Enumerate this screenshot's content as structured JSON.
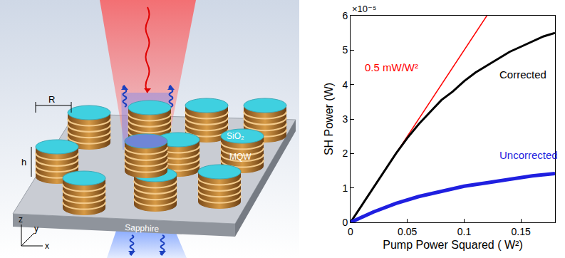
{
  "chart_data": {
    "type": "line",
    "xlabel": "Pump Power Squared ( W²)",
    "ylabel": "SH Power (W)",
    "y_scale_label": "×10⁻⁵",
    "xlim": [
      0,
      0.18
    ],
    "ylim": [
      0,
      6
    ],
    "xticks": [
      0,
      0.05,
      0.1,
      0.15
    ],
    "yticks": [
      0,
      1,
      2,
      3,
      4,
      5,
      6
    ],
    "grid": false,
    "series": [
      {
        "color": "#ff0000",
        "line_style": "solid",
        "x": [
          0,
          0.12
        ],
        "values": [
          0,
          6
        ]
      },
      {
        "color": "#000000",
        "line_style": "solid",
        "x": [
          0,
          0.01,
          0.02,
          0.03,
          0.04,
          0.05,
          0.06,
          0.07,
          0.08,
          0.09,
          0.1,
          0.11,
          0.12,
          0.13,
          0.14,
          0.15,
          0.16,
          0.17,
          0.18
        ],
        "values": [
          0,
          0.5,
          1.0,
          1.5,
          2.0,
          2.45,
          2.85,
          3.2,
          3.55,
          3.8,
          4.1,
          4.35,
          4.55,
          4.75,
          4.95,
          5.1,
          5.25,
          5.4,
          5.5
        ]
      },
      {
        "color": "#1f1fe0",
        "line_style": "solid",
        "x": [
          0,
          0.02,
          0.04,
          0.06,
          0.08,
          0.1,
          0.12,
          0.14,
          0.16,
          0.18
        ],
        "values": [
          0,
          0.3,
          0.55,
          0.75,
          0.9,
          1.05,
          1.15,
          1.25,
          1.35,
          1.42
        ]
      }
    ],
    "annotations": [
      {
        "text": "0.5 mW/W²",
        "x": 0.036,
        "y": 4.5,
        "color": "#ff0000"
      },
      {
        "text": "Corrected",
        "x": 0.152,
        "y": 4.3,
        "color": "#000000"
      },
      {
        "text": "Uncorrected",
        "x": 0.157,
        "y": 1.95,
        "color": "#1f1fe0"
      }
    ]
  },
  "diagram": {
    "radius": "R",
    "height": "h",
    "cap": "SiO₂",
    "layer": "MQW",
    "substrate": "Sapphire",
    "axes": {
      "z": "z",
      "y": "y",
      "x": "x"
    }
  }
}
